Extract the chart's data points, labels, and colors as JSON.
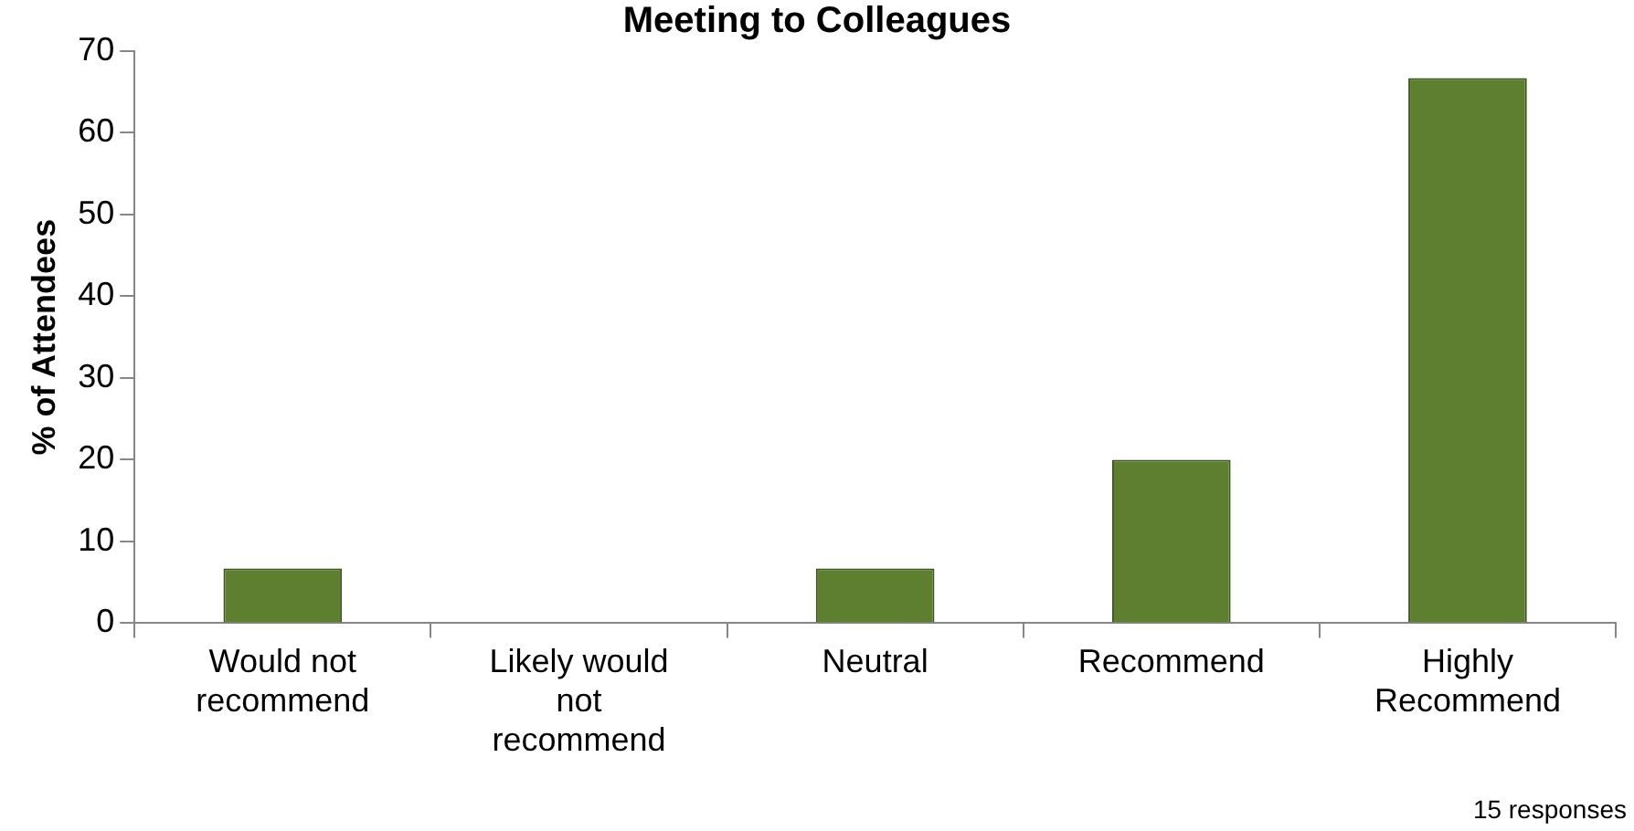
{
  "chart_data": {
    "type": "bar",
    "title": "Meeting to Colleagues",
    "ylabel": "% of Attendees",
    "categories": [
      "Would not recommend",
      "Likely would not recommend",
      "Neutral",
      "Recommend",
      "Highly Recommend"
    ],
    "values": [
      6.7,
      0,
      6.7,
      20,
      66.7
    ],
    "color": "#5f7f30",
    "ylim": [
      0,
      70
    ],
    "yticks": [
      0,
      10,
      20,
      30,
      40,
      50,
      60,
      70
    ],
    "grid": false,
    "legend": false,
    "annotations": [
      "15 responses"
    ]
  }
}
